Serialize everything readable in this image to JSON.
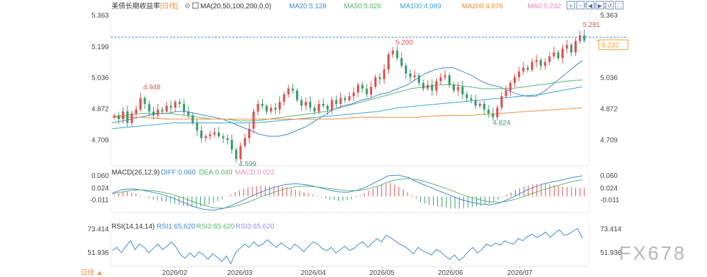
{
  "header": {
    "title": "美债长期收益率",
    "period_tag": "[日线]",
    "ma_label": "MA(20,50,100,200,0,0)",
    "legend": [
      {
        "label": "MA20:5.128",
        "color": "#3f86d6"
      },
      {
        "label": "MA50:5.026",
        "color": "#57b36f"
      },
      {
        "label": "MA100:4.989",
        "color": "#38a5cc"
      },
      {
        "label": "MA200:4.876",
        "color": "#f08c3a"
      },
      {
        "label": "MA0:5.232",
        "color": "#e48ab7"
      },
      {
        "label": "MA0:5.232",
        "color": "#8f8fe6"
      }
    ]
  },
  "toolbar": {
    "icons": [
      "zoom-in-icon",
      "zoom-out-icon",
      "scroll-left-icon",
      "scroll-right-icon",
      "reset-icon",
      "fullscreen-icon"
    ]
  },
  "footer": {
    "period_button": "日线 ▲"
  },
  "watermark": "FX678",
  "colors": {
    "up": "#e0504f",
    "down": "#3a9d6e",
    "ma20": "#3f86d6",
    "ma50": "#57b36f",
    "ma100": "#38a5cc",
    "ma200": "#f08c3a",
    "last": "#f0a030"
  },
  "chart_data": [
    {
      "type": "candlestick",
      "title": "美债长期收益率",
      "y_ticks": [
        "5.363",
        "5.199",
        "5.036",
        "4.872",
        "4.709"
      ],
      "ylim": [
        4.58,
        5.38
      ],
      "x_ticks": [
        "2026/02",
        "2026/03",
        "2026/04",
        "2026/05",
        "2026/06",
        "2026/07"
      ],
      "annotations": [
        "4.948",
        "4.599",
        "5.200",
        "4.824",
        "5.281"
      ],
      "last_value": "5.232",
      "closes": [
        4.84,
        4.82,
        4.86,
        4.8,
        4.85,
        4.87,
        4.93,
        4.9,
        4.86,
        4.84,
        4.87,
        4.86,
        4.89,
        4.88,
        4.91,
        4.9,
        4.86,
        4.84,
        4.8,
        4.76,
        4.72,
        4.73,
        4.74,
        4.75,
        4.73,
        4.72,
        4.71,
        4.66,
        4.61,
        4.68,
        4.72,
        4.77,
        4.86,
        4.9,
        4.89,
        4.86,
        4.88,
        4.87,
        4.91,
        4.95,
        4.98,
        4.97,
        4.92,
        4.89,
        4.91,
        4.88,
        4.86,
        4.9,
        4.89,
        4.87,
        4.92,
        4.9,
        4.93,
        4.92,
        4.94,
        4.96,
        5.0,
        4.98,
        4.95,
        4.99,
        5.04,
        5.03,
        5.08,
        5.16,
        5.18,
        5.14,
        5.1,
        5.06,
        5.04,
        5.05,
        5.01,
        4.98,
        5.0,
        4.97,
        5.02,
        5.04,
        5.05,
        5.0,
        4.97,
        4.99,
        4.95,
        4.93,
        4.92,
        4.89,
        4.9,
        4.87,
        4.85,
        4.83,
        4.88,
        4.94,
        4.97,
        5.01,
        5.04,
        5.07,
        5.09,
        5.08,
        5.12,
        5.13,
        5.1,
        5.12,
        5.15,
        5.17,
        5.14,
        5.19,
        5.21,
        5.17,
        5.23,
        5.26,
        5.232
      ],
      "series": [
        {
          "name": "MA20",
          "values": [
            4.8,
            4.81,
            4.82,
            4.83,
            4.84,
            4.85,
            4.85,
            4.86,
            4.86,
            4.85,
            4.84,
            4.83,
            4.82,
            4.8,
            4.78,
            4.76,
            4.74,
            4.73,
            4.73,
            4.74,
            4.76,
            4.78,
            4.81,
            4.84,
            4.87,
            4.89,
            4.9,
            4.92,
            4.93,
            4.95,
            4.96,
            4.98,
            5.0,
            5.03,
            5.06,
            5.08,
            5.09,
            5.09,
            5.07,
            5.05,
            5.02,
            5.0,
            4.99,
            4.97,
            4.95,
            4.94,
            4.94,
            4.97,
            5.01,
            5.05,
            5.09,
            5.128
          ]
        },
        {
          "name": "MA50",
          "values": [
            4.83,
            4.84,
            4.85,
            4.85,
            4.85,
            4.84,
            4.83,
            4.82,
            4.82,
            4.81,
            4.81,
            4.82,
            4.83,
            4.84,
            4.85,
            4.86,
            4.88,
            4.9,
            4.92,
            4.94,
            4.96,
            4.98,
            4.99,
            5.0,
            5.0,
            4.99,
            4.98,
            4.98,
            4.98,
            4.99,
            5.0,
            5.01,
            5.02,
            5.026
          ]
        },
        {
          "name": "MA100",
          "values": [
            4.77,
            4.78,
            4.79,
            4.8,
            4.8,
            4.8,
            4.8,
            4.8,
            4.81,
            4.82,
            4.83,
            4.84,
            4.85,
            4.86,
            4.88,
            4.89,
            4.9,
            4.91,
            4.92,
            4.93,
            4.94,
            4.95,
            4.97,
            4.99
          ]
        },
        {
          "name": "MA200",
          "values": [
            4.83,
            4.83,
            4.82,
            4.82,
            4.82,
            4.82,
            4.82,
            4.82,
            4.82,
            4.83,
            4.83,
            4.83,
            4.84,
            4.84,
            4.85,
            4.86,
            4.87,
            4.88
          ]
        }
      ]
    },
    {
      "type": "bar",
      "title": "MACD(26,12,9)",
      "legend": [
        {
          "label": "DIFF:0.060",
          "color": "#3f86d6"
        },
        {
          "label": "DEA:0.049",
          "color": "#57b36f"
        },
        {
          "label": "MACD:0.022",
          "color": "#e48ab7"
        }
      ],
      "y_ticks": [
        "0.060",
        "0.024",
        "-0.011"
      ],
      "ylim": [
        -0.045,
        0.072
      ],
      "series": [
        {
          "name": "DIFF",
          "values": [
            0.01,
            0.02,
            0.022,
            0.018,
            0.012,
            0.005,
            -0.005,
            -0.018,
            -0.03,
            -0.038,
            -0.04,
            -0.034,
            -0.022,
            -0.008,
            0.006,
            0.018,
            0.028,
            0.035,
            0.037,
            0.034,
            0.028,
            0.02,
            0.014,
            0.012,
            0.018,
            0.03,
            0.045,
            0.06,
            0.062,
            0.055,
            0.04,
            0.028,
            0.016,
            0.004,
            -0.008,
            -0.016,
            -0.022,
            -0.025,
            -0.018,
            -0.005,
            0.01,
            0.024,
            0.035,
            0.042,
            0.048,
            0.055,
            0.06
          ]
        },
        {
          "name": "DEA",
          "values": [
            0.008,
            0.013,
            0.018,
            0.019,
            0.017,
            0.012,
            0.005,
            -0.005,
            -0.016,
            -0.026,
            -0.033,
            -0.034,
            -0.029,
            -0.02,
            -0.008,
            0.004,
            0.014,
            0.023,
            0.029,
            0.03,
            0.028,
            0.024,
            0.02,
            0.017,
            0.017,
            0.022,
            0.03,
            0.042,
            0.05,
            0.052,
            0.048,
            0.04,
            0.03,
            0.02,
            0.008,
            -0.002,
            -0.01,
            -0.016,
            -0.017,
            -0.012,
            -0.003,
            0.008,
            0.018,
            0.027,
            0.035,
            0.043,
            0.049
          ]
        }
      ]
    },
    {
      "type": "line",
      "title": "RSI(14,14,14)",
      "legend": [
        {
          "label": "RSI1:65.620",
          "color": "#3f86d6"
        },
        {
          "label": "RSI2:65.620",
          "color": "#57b36f"
        },
        {
          "label": "RSI3:65.620",
          "color": "#8f8fe6"
        }
      ],
      "y_ticks": [
        "73.414",
        "51.936"
      ],
      "ylim": [
        40,
        78
      ],
      "values": [
        54,
        57,
        52,
        58,
        63,
        55,
        60,
        57,
        52,
        56,
        60,
        55,
        58,
        62,
        57,
        50,
        47,
        52,
        48,
        53,
        50,
        46,
        51,
        48,
        44,
        49,
        42,
        52,
        56,
        60,
        57,
        62,
        58,
        60,
        64,
        60,
        57,
        61,
        58,
        55,
        60,
        57,
        53,
        58,
        62,
        60,
        56,
        54,
        57,
        52,
        55,
        58,
        54,
        56,
        60,
        62,
        57,
        61,
        65,
        62,
        68,
        66,
        63,
        60,
        58,
        55,
        51,
        57,
        54,
        52,
        50,
        55,
        53,
        49,
        46,
        50,
        45,
        48,
        53,
        57,
        52,
        55,
        60,
        58,
        61,
        59,
        63,
        61,
        60,
        65,
        63,
        67,
        69,
        66,
        68,
        71,
        66,
        70,
        73,
        68,
        69,
        72,
        74,
        65.6
      ]
    }
  ]
}
